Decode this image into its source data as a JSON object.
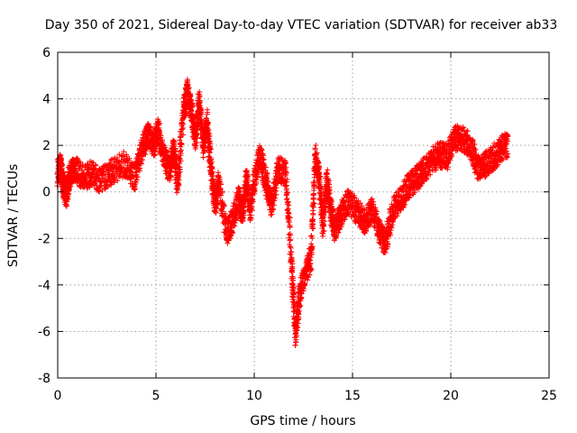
{
  "chart_data": {
    "type": "scatter",
    "title": "Day 350 of 2021, Sidereal Day-to-day VTEC variation (SDTVAR) for receiver ab33",
    "xlabel": "GPS time / hours",
    "ylabel": "SDTVAR / TECUs",
    "xlim": [
      0,
      25
    ],
    "ylim": [
      -8,
      6
    ],
    "xticks": [
      0,
      5,
      10,
      15,
      20,
      25
    ],
    "yticks": [
      -8,
      -6,
      -4,
      -2,
      0,
      2,
      4,
      6
    ],
    "grid": true,
    "marker": "+",
    "series": [
      {
        "name": "receiver ab33",
        "color": "#ff0000",
        "profile": [
          [
            0.0,
            0.8
          ],
          [
            0.15,
            1.1
          ],
          [
            0.3,
            0.2
          ],
          [
            0.45,
            -0.1
          ],
          [
            0.6,
            0.7
          ],
          [
            0.9,
            1.0
          ],
          [
            1.3,
            0.6
          ],
          [
            1.7,
            0.8
          ],
          [
            2.2,
            0.5
          ],
          [
            2.8,
            0.9
          ],
          [
            3.4,
            1.2
          ],
          [
            3.9,
            0.6
          ],
          [
            4.3,
            1.8
          ],
          [
            4.6,
            2.5
          ],
          [
            4.9,
            2.0
          ],
          [
            5.1,
            2.7
          ],
          [
            5.4,
            1.5
          ],
          [
            5.7,
            0.9
          ],
          [
            5.9,
            2.0
          ],
          [
            6.1,
            0.3
          ],
          [
            6.4,
            3.4
          ],
          [
            6.6,
            4.3
          ],
          [
            6.8,
            3.5
          ],
          [
            7.0,
            2.2
          ],
          [
            7.2,
            3.9
          ],
          [
            7.4,
            2.0
          ],
          [
            7.6,
            3.0
          ],
          [
            7.8,
            1.0
          ],
          [
            8.0,
            -0.5
          ],
          [
            8.2,
            0.4
          ],
          [
            8.6,
            -1.8
          ],
          [
            8.9,
            -1.2
          ],
          [
            9.2,
            -0.3
          ],
          [
            9.4,
            -1.0
          ],
          [
            9.6,
            0.6
          ],
          [
            9.8,
            -0.8
          ],
          [
            10.0,
            0.5
          ],
          [
            10.3,
            1.6
          ],
          [
            10.6,
            0.4
          ],
          [
            10.9,
            -0.6
          ],
          [
            11.2,
            1.0
          ],
          [
            11.6,
            0.8
          ],
          [
            11.9,
            -3.0
          ],
          [
            12.1,
            -6.2
          ],
          [
            12.3,
            -4.5
          ],
          [
            12.6,
            -3.5
          ],
          [
            12.9,
            -2.8
          ],
          [
            13.1,
            1.5
          ],
          [
            13.3,
            0.6
          ],
          [
            13.5,
            -1.5
          ],
          [
            13.7,
            0.5
          ],
          [
            13.9,
            -0.8
          ],
          [
            14.1,
            -1.6
          ],
          [
            14.4,
            -1.0
          ],
          [
            14.8,
            -0.4
          ],
          [
            15.2,
            -0.8
          ],
          [
            15.6,
            -1.3
          ],
          [
            16.0,
            -0.8
          ],
          [
            16.4,
            -1.8
          ],
          [
            16.7,
            -2.2
          ],
          [
            17.0,
            -0.9
          ],
          [
            17.4,
            -0.4
          ],
          [
            17.8,
            0.2
          ],
          [
            18.2,
            0.5
          ],
          [
            18.6,
            0.9
          ],
          [
            19.0,
            1.3
          ],
          [
            19.4,
            1.6
          ],
          [
            19.8,
            1.5
          ],
          [
            20.2,
            2.3
          ],
          [
            20.6,
            2.3
          ],
          [
            21.0,
            2.0
          ],
          [
            21.4,
            1.0
          ],
          [
            21.8,
            1.2
          ],
          [
            22.2,
            1.5
          ],
          [
            22.6,
            1.9
          ],
          [
            22.9,
            2.0
          ]
        ]
      }
    ]
  }
}
